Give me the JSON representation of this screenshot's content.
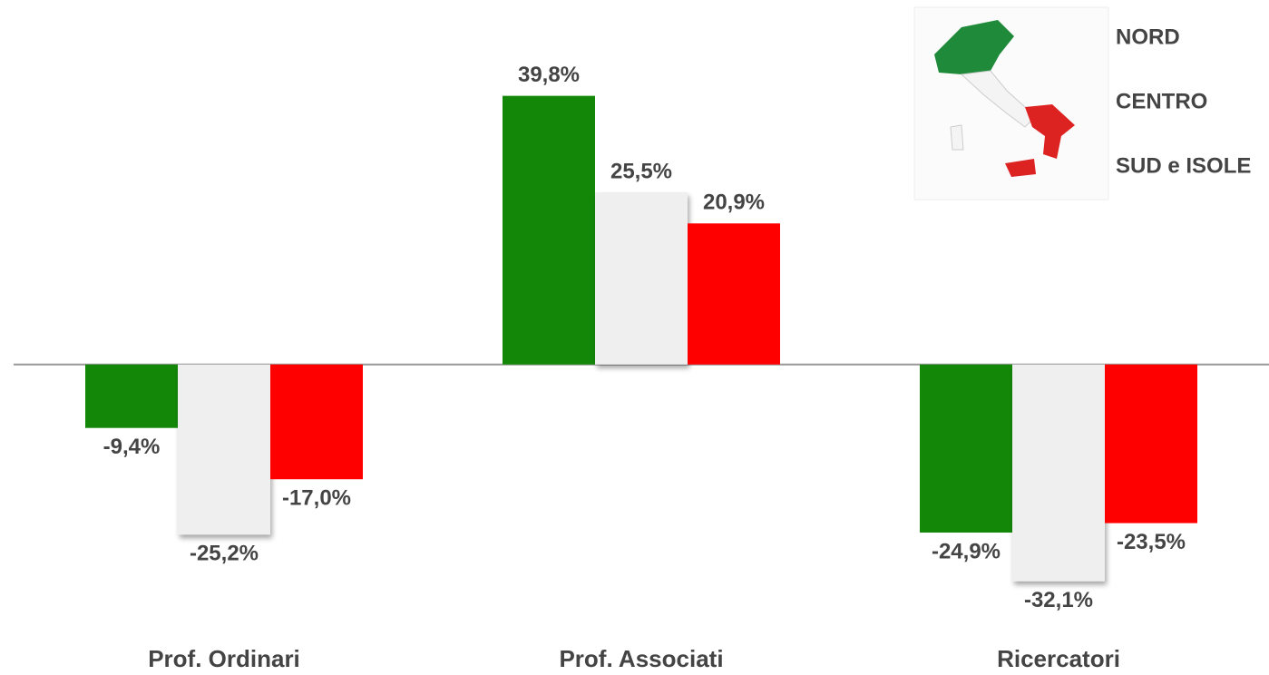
{
  "chart_data": {
    "type": "bar",
    "categories": [
      "Prof. Ordinari",
      "Prof. Associati",
      "Ricercatori"
    ],
    "series": [
      {
        "name": "NORD",
        "color": "#138808",
        "values": [
          -9.4,
          39.8,
          -24.9
        ],
        "value_labels": [
          "-9,4%",
          "39,8%",
          "-24,9%"
        ]
      },
      {
        "name": "CENTRO",
        "color": "#efefef",
        "values": [
          -25.2,
          25.5,
          -32.1
        ],
        "value_labels": [
          "-25,2%",
          "25,5%",
          "-32,1%"
        ]
      },
      {
        "name": "SUD e ISOLE",
        "color": "#ff0000",
        "values": [
          -17.0,
          20.9,
          -23.5
        ],
        "value_labels": [
          "-17,0%",
          "20,9%",
          "-23,5%"
        ]
      }
    ],
    "ylim": [
      -46,
      54
    ],
    "legend": "top-right"
  }
}
